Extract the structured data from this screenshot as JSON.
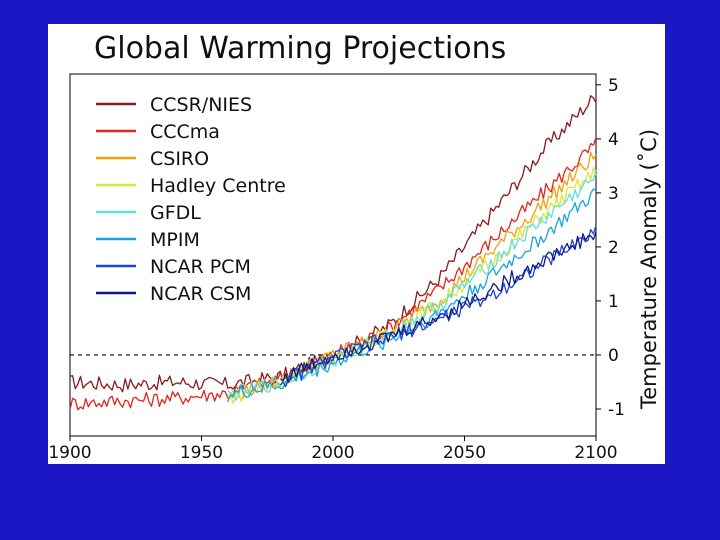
{
  "colors": {
    "background": "#1c17c4",
    "panel": "#ffffff",
    "axis": "#000000"
  },
  "chart_data": {
    "type": "line",
    "title": "Global Warming Projections",
    "xlabel": "",
    "ylabel": "Temperature Anomaly (˚C)",
    "xlim": [
      1900,
      2100
    ],
    "ylim": [
      -1.5,
      5.2
    ],
    "xticks": [
      1900,
      1950,
      2000,
      2050,
      2100
    ],
    "xtick_labels": [
      "1900",
      "1950",
      "2000",
      "2050",
      "2100"
    ],
    "yticks": [
      -1,
      0,
      1,
      2,
      3,
      4,
      5
    ],
    "ytick_labels": [
      "-1",
      "0",
      "1",
      "2",
      "3",
      "4",
      "5"
    ],
    "reference_line": {
      "y": 0,
      "style": "dashed"
    },
    "legend_position": "top-left",
    "series": [
      {
        "name": "CCSR/NIES",
        "color": "#8b1a1a",
        "x": [
          1900,
          1920,
          1940,
          1960,
          1980,
          2000,
          2020,
          2040,
          2060,
          2080,
          2100
        ],
        "y": [
          -0.5,
          -0.55,
          -0.5,
          -0.55,
          -0.4,
          0.0,
          0.5,
          1.4,
          2.6,
          3.8,
          4.8
        ]
      },
      {
        "name": "CCCma",
        "color": "#e0261b",
        "x": [
          1900,
          1920,
          1940,
          1960,
          1980,
          2000,
          2020,
          2040,
          2060,
          2080,
          2100
        ],
        "y": [
          -0.9,
          -0.85,
          -0.8,
          -0.7,
          -0.45,
          0.0,
          0.45,
          1.2,
          2.1,
          3.0,
          3.9
        ]
      },
      {
        "name": "CSIRO",
        "color": "#f5a10a",
        "x": [
          1960,
          1980,
          2000,
          2020,
          2040,
          2060,
          2080,
          2100
        ],
        "y": [
          -0.8,
          -0.45,
          0.0,
          0.4,
          1.0,
          1.9,
          2.8,
          3.7
        ]
      },
      {
        "name": "Hadley Centre",
        "color": "#d8e83a",
        "x": [
          1960,
          1980,
          2000,
          2020,
          2040,
          2060,
          2080,
          2100
        ],
        "y": [
          -0.8,
          -0.5,
          -0.05,
          0.35,
          0.95,
          1.7,
          2.6,
          3.4
        ]
      },
      {
        "name": "GFDL",
        "color": "#5fe0d8",
        "x": [
          1960,
          1980,
          2000,
          2020,
          2040,
          2060,
          2080,
          2100
        ],
        "y": [
          -0.75,
          -0.5,
          -0.1,
          0.35,
          0.9,
          1.7,
          2.5,
          3.3
        ]
      },
      {
        "name": "MPIM",
        "color": "#1aa3dc",
        "x": [
          1960,
          1980,
          2000,
          2020,
          2040,
          2060,
          2080,
          2100
        ],
        "y": [
          -0.75,
          -0.55,
          -0.15,
          0.25,
          0.75,
          1.45,
          2.2,
          3.0
        ]
      },
      {
        "name": "NCAR PCM",
        "color": "#1f45d6",
        "x": [
          1980,
          2000,
          2020,
          2040,
          2060,
          2080,
          2100
        ],
        "y": [
          -0.5,
          -0.05,
          0.3,
          0.65,
          1.1,
          1.7,
          2.3
        ]
      },
      {
        "name": "NCAR CSM",
        "color": "#0d1a8a",
        "x": [
          1980,
          2000,
          2020,
          2040,
          2060,
          2080,
          2100
        ],
        "y": [
          -0.45,
          0.0,
          0.3,
          0.7,
          1.2,
          1.75,
          2.25
        ]
      }
    ]
  }
}
